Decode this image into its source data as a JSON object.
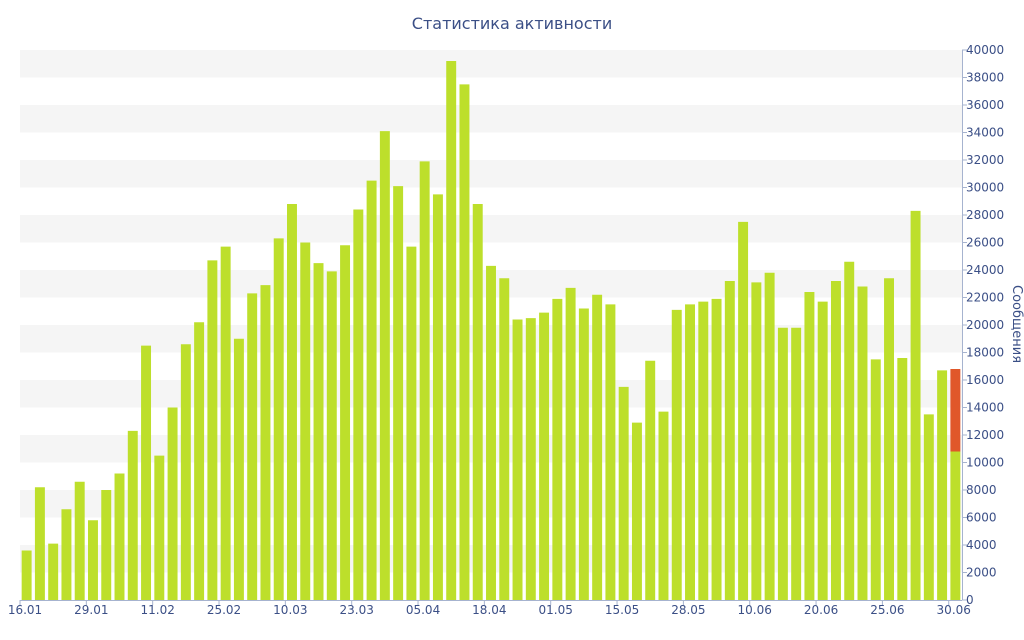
{
  "chart_data": {
    "type": "bar",
    "title": "Статистика активности",
    "ylabel": "Сообщения",
    "ylim": [
      0,
      40000
    ],
    "y_ticks": [
      0,
      2000,
      4000,
      6000,
      8000,
      10000,
      12000,
      14000,
      16000,
      18000,
      20000,
      22000,
      24000,
      26000,
      28000,
      30000,
      32000,
      34000,
      36000,
      38000,
      40000
    ],
    "y_axis_position": "right",
    "x_tick_labels": [
      {
        "label": "16.01",
        "index": 0
      },
      {
        "label": "29.01",
        "index": 5
      },
      {
        "label": "11.02",
        "index": 10
      },
      {
        "label": "25.02",
        "index": 15
      },
      {
        "label": "10.03",
        "index": 20
      },
      {
        "label": "23.03",
        "index": 25
      },
      {
        "label": "05.04",
        "index": 30
      },
      {
        "label": "18.04",
        "index": 35
      },
      {
        "label": "01.05",
        "index": 40
      },
      {
        "label": "15.05",
        "index": 45
      },
      {
        "label": "28.05",
        "index": 50
      },
      {
        "label": "10.06",
        "index": 55
      },
      {
        "label": "20.06",
        "index": 60
      },
      {
        "label": "25.06",
        "index": 65
      },
      {
        "label": "30.06",
        "index": 70
      }
    ],
    "grid": "horizontal alternating bands",
    "colors": {
      "bar": "#bddf2b",
      "highlight": "#e0572a",
      "band": "#f5f5f5",
      "text": "#3b4f86",
      "axis": "#a6b3cf"
    },
    "values": [
      3600,
      8200,
      4100,
      6600,
      8600,
      5800,
      8000,
      9200,
      12300,
      18500,
      10500,
      14000,
      18600,
      20200,
      24700,
      25700,
      19000,
      22300,
      22900,
      26300,
      28800,
      26000,
      24500,
      23900,
      25800,
      28400,
      30500,
      34100,
      30100,
      25700,
      31900,
      29500,
      39200,
      37500,
      28800,
      24300,
      23400,
      20400,
      20500,
      20900,
      21900,
      22700,
      21200,
      22200,
      21500,
      15500,
      12900,
      17400,
      13700,
      21100,
      21500,
      21700,
      21900,
      23200,
      27500,
      23100,
      23800,
      19800,
      19800,
      22400,
      21700,
      23200,
      24600,
      22800,
      17500,
      23400,
      17600,
      28300,
      13500,
      16700,
      10800
    ],
    "highlight": {
      "index": 70,
      "values": [
        10800,
        16800
      ]
    }
  }
}
